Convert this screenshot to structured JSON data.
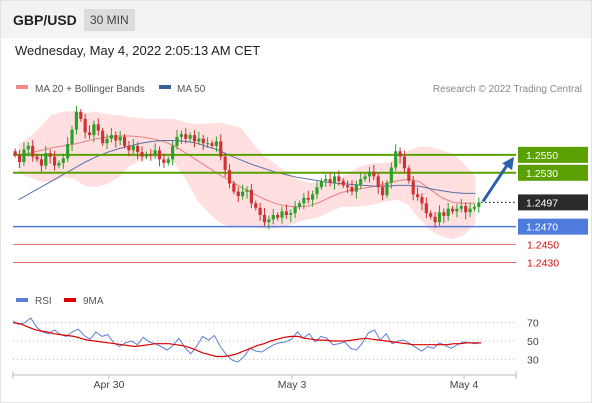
{
  "header": {
    "symbol": "GBP/USD",
    "timeframe": "30 MIN",
    "datetime": "Wednesday, May 4, 2022 2:05:13 AM CET"
  },
  "legend": {
    "ma20_bb": "MA 20 + Bollinger Bands",
    "ma50": "MA 50",
    "research": "Research © 2022 Trading Central",
    "rsi": "RSI",
    "ma9": "9MA"
  },
  "colors": {
    "candle_up": "#2aa02a",
    "candle_down": "#cc3333",
    "bollinger_fill": "#ffd9d9",
    "ma20": "#e88080",
    "ma50": "#5570a8",
    "green_level": "#5aa000",
    "blue_level": "#4f7bdc",
    "red_level": "#e05050",
    "arrow": "#2b62a8",
    "rsi_line": "#5b7fd6",
    "rsi_ma": "#dd0000"
  },
  "chart_data": [
    {
      "type": "candlestick",
      "title": "GBP/USD 30 MIN",
      "x_labels": [
        "Apr 30",
        "May 3",
        "May 4"
      ],
      "ylim": [
        1.2415,
        1.261
      ],
      "current_price": {
        "label": "1.2497",
        "value": 1.2497
      },
      "forecast_arrow": {
        "from": 1.2497,
        "to": 1.255
      },
      "levels": [
        {
          "label": "1.2550",
          "value": 1.255,
          "kind": "resistance",
          "color": "green"
        },
        {
          "label": "1.2530",
          "value": 1.253,
          "kind": "resistance",
          "color": "green"
        },
        {
          "label": "1.2470",
          "value": 1.247,
          "kind": "pivot",
          "color": "blue"
        },
        {
          "label": "1.2450",
          "value": 1.245,
          "kind": "support",
          "color": "red"
        },
        {
          "label": "1.2430",
          "value": 1.243,
          "kind": "support",
          "color": "red"
        }
      ],
      "closes": [
        1.255,
        1.2542,
        1.2556,
        1.256,
        1.2548,
        1.2545,
        1.2538,
        1.2552,
        1.2548,
        1.2538,
        1.2541,
        1.2546,
        1.2562,
        1.2578,
        1.2598,
        1.259,
        1.2575,
        1.2572,
        1.2584,
        1.2577,
        1.2563,
        1.2568,
        1.2572,
        1.2566,
        1.257,
        1.256,
        1.2555,
        1.256,
        1.2553,
        1.2548,
        1.2551,
        1.255,
        1.2555,
        1.2545,
        1.2541,
        1.2545,
        1.256,
        1.257,
        1.2573,
        1.2568,
        1.2572,
        1.2565,
        1.2568,
        1.2563,
        1.2563,
        1.256,
        1.2565,
        1.2548,
        1.2533,
        1.2518,
        1.2509,
        1.2504,
        1.2509,
        1.2511,
        1.2496,
        1.2491,
        1.2483,
        1.2475,
        1.2478,
        1.2483,
        1.248,
        1.2487,
        1.2483,
        1.2485,
        1.2492,
        1.2496,
        1.2502,
        1.25,
        1.2506,
        1.2514,
        1.2521,
        1.2523,
        1.2519,
        1.2526,
        1.2521,
        1.2516,
        1.2514,
        1.2509,
        1.2517,
        1.2523,
        1.2526,
        1.2531,
        1.2526,
        1.2514,
        1.2505,
        1.2519,
        1.2536,
        1.2554,
        1.2548,
        1.2535,
        1.2521,
        1.2506,
        1.2503,
        1.2496,
        1.2485,
        1.2481,
        1.2475,
        1.2486,
        1.2482,
        1.249,
        1.2487,
        1.249,
        1.2493,
        1.2486,
        1.249,
        1.2492,
        1.2497
      ],
      "ma20": [
        1.255,
        1.2552,
        1.2555,
        1.2558,
        1.256,
        1.2562,
        1.2565,
        1.2568,
        1.257,
        1.2571,
        1.2571,
        1.257,
        1.2568,
        1.2565,
        1.256,
        1.2552,
        1.2544,
        1.2536,
        1.2528,
        1.2521,
        1.2514,
        1.2507,
        1.2501,
        1.2496,
        1.2493,
        1.2492,
        1.2493,
        1.2497,
        1.2503,
        1.2508,
        1.2511,
        1.2513,
        1.2515,
        1.2518,
        1.2521,
        1.2523,
        1.252,
        1.2511,
        1.2502,
        1.2497,
        1.2496,
        1.2496
      ],
      "ma50": [
        1.25,
        1.2507,
        1.2514,
        1.2521,
        1.2528,
        1.2535,
        1.2542,
        1.2548,
        1.2553,
        1.2557,
        1.256,
        1.2563,
        1.2565,
        1.2566,
        1.2566,
        1.2565,
        1.2563,
        1.2559,
        1.2555,
        1.2549,
        1.2544,
        1.2539,
        1.2535,
        1.2531,
        1.2528,
        1.2525,
        1.2523,
        1.2521,
        1.2519,
        1.2518,
        1.2517,
        1.2516,
        1.2515,
        1.2515,
        1.2516,
        1.2516,
        1.2515,
        1.2512,
        1.251,
        1.2508,
        1.2507,
        1.2507
      ],
      "bb_upper": [
        1.2562,
        1.257,
        1.2582,
        1.2595,
        1.2598,
        1.2599,
        1.2597,
        1.2598,
        1.2595,
        1.2594,
        1.2592,
        1.2591,
        1.259,
        1.259,
        1.259,
        1.2586,
        1.2584,
        1.2585,
        1.2586,
        1.2583,
        1.258,
        1.2563,
        1.2549,
        1.254,
        1.2531,
        1.2523,
        1.2519,
        1.2519,
        1.252,
        1.2525,
        1.2533,
        1.2539,
        1.2541,
        1.2541,
        1.2546,
        1.2555,
        1.2559,
        1.2559,
        1.2555,
        1.2551,
        1.254,
        1.2525
      ],
      "bb_lower": [
        1.253,
        1.2525,
        1.252,
        1.252,
        1.2525,
        1.2523,
        1.2515,
        1.2514,
        1.2518,
        1.2525,
        1.2538,
        1.2544,
        1.2547,
        1.2546,
        1.254,
        1.2523,
        1.25,
        1.2486,
        1.2475,
        1.2469,
        1.247,
        1.2469,
        1.2468,
        1.2468,
        1.247,
        1.2475,
        1.2478,
        1.2481,
        1.2487,
        1.2492,
        1.2492,
        1.2493,
        1.2495,
        1.2498,
        1.25,
        1.2494,
        1.2478,
        1.2465,
        1.2459,
        1.2456,
        1.2461,
        1.2473
      ]
    },
    {
      "type": "line",
      "title": "RSI",
      "yticks": [
        30,
        50,
        70
      ],
      "ylim": [
        15,
        85
      ],
      "series": [
        {
          "name": "RSI",
          "values": [
            72,
            68,
            70,
            75,
            65,
            60,
            58,
            62,
            57,
            55,
            60,
            63,
            56,
            52,
            60,
            55,
            57,
            48,
            44,
            48,
            50,
            46,
            54,
            49,
            47,
            44,
            40,
            45,
            53,
            43,
            36,
            44,
            55,
            51,
            56,
            44,
            35,
            29,
            27,
            33,
            42,
            39,
            38,
            42,
            46,
            48,
            49,
            52,
            60,
            53,
            58,
            49,
            55,
            53,
            46,
            47,
            49,
            42,
            40,
            48,
            59,
            62,
            51,
            58,
            47,
            50,
            51,
            47,
            43,
            39,
            44,
            42,
            48,
            45,
            42,
            46,
            49,
            48,
            47,
            48
          ]
        },
        {
          "name": "9MA",
          "values": [
            70,
            69,
            66,
            63,
            61,
            60,
            58,
            57,
            56,
            55,
            53,
            51,
            50,
            49,
            48,
            47,
            46,
            45,
            44,
            45,
            46,
            47,
            47,
            47,
            46,
            45,
            43,
            40,
            37,
            35,
            33,
            33,
            34,
            36,
            39,
            42,
            45,
            47,
            50,
            52,
            54,
            55,
            55,
            53,
            52,
            51,
            51,
            50,
            50,
            50,
            51,
            52,
            53,
            52,
            51,
            50,
            49,
            48,
            47,
            46,
            46,
            46,
            46,
            46,
            46,
            47,
            47,
            48,
            48,
            48
          ]
        }
      ]
    }
  ]
}
